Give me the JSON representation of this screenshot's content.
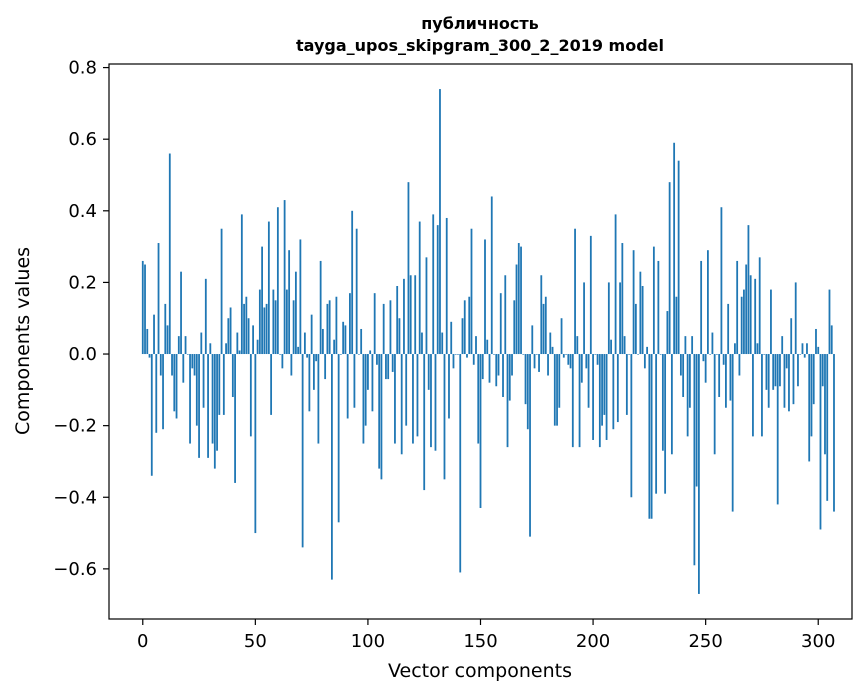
{
  "chart_data": {
    "type": "bar",
    "title_lines": [
      "публичность",
      "tayga_upos_skipgram_300_2_2019 model"
    ],
    "xlabel": "Vector components",
    "ylabel": "Components values",
    "xlim": [
      -15,
      315
    ],
    "ylim": [
      -0.74,
      0.81
    ],
    "xticks": [
      0,
      50,
      100,
      150,
      200,
      250,
      300
    ],
    "xtick_labels": [
      "0",
      "50",
      "100",
      "150",
      "200",
      "250",
      "300"
    ],
    "yticks": [
      -0.6,
      -0.4,
      -0.2,
      0.0,
      0.2,
      0.4,
      0.6,
      0.8
    ],
    "ytick_labels": [
      "−0.6",
      "−0.4",
      "−0.2",
      "0.0",
      "0.2",
      "0.4",
      "0.6",
      "0.8"
    ],
    "grid": false,
    "legend": "none",
    "bar_color": "#1f77b4",
    "series": [
      {
        "values": [
          0.26,
          0.25,
          0.07,
          -0.01,
          -0.34,
          0.11,
          -0.22,
          0.31,
          -0.06,
          -0.21,
          0.14,
          0.08,
          0.56,
          -0.06,
          -0.16,
          -0.18,
          0.05,
          0.23,
          -0.08,
          0.05,
          0.0,
          -0.25,
          -0.04,
          -0.06,
          -0.2,
          -0.29,
          0.06,
          -0.15,
          0.21,
          -0.29,
          0.03,
          -0.25,
          -0.32,
          -0.27,
          -0.17,
          0.35,
          -0.17,
          0.03,
          0.1,
          0.13,
          -0.12,
          -0.36,
          0.06,
          0.01,
          0.39,
          0.14,
          0.16,
          0.1,
          -0.23,
          0.08,
          -0.5,
          0.04,
          0.18,
          0.3,
          0.13,
          0.14,
          0.37,
          -0.17,
          0.18,
          0.15,
          0.41,
          0.0,
          -0.04,
          0.43,
          0.18,
          0.29,
          -0.06,
          0.15,
          0.23,
          0.02,
          0.32,
          -0.54,
          0.06,
          -0.01,
          -0.16,
          0.11,
          -0.1,
          -0.02,
          -0.25,
          0.26,
          0.07,
          -0.07,
          0.14,
          0.15,
          -0.63,
          0.04,
          0.16,
          -0.47,
          0.0,
          0.09,
          0.08,
          -0.18,
          0.17,
          0.4,
          -0.15,
          0.35,
          0.0,
          0.07,
          -0.25,
          -0.2,
          -0.1,
          0.01,
          -0.16,
          0.17,
          -0.03,
          -0.32,
          -0.35,
          0.14,
          -0.07,
          -0.07,
          0.15,
          -0.05,
          -0.25,
          0.19,
          0.1,
          -0.28,
          0.21,
          -0.2,
          0.48,
          0.22,
          -0.25,
          0.22,
          -0.23,
          0.37,
          0.06,
          -0.38,
          0.27,
          -0.1,
          -0.26,
          0.39,
          -0.27,
          0.36,
          0.74,
          0.06,
          -0.35,
          0.38,
          -0.18,
          0.09,
          -0.04,
          0.0,
          0.0,
          -0.61,
          0.1,
          0.15,
          -0.01,
          0.16,
          0.35,
          -0.03,
          0.05,
          -0.25,
          -0.43,
          -0.07,
          0.32,
          0.04,
          -0.08,
          0.44,
          0.0,
          -0.09,
          -0.06,
          0.17,
          -0.12,
          0.22,
          -0.26,
          -0.13,
          -0.06,
          0.15,
          0.25,
          0.31,
          0.3,
          0.0,
          -0.14,
          -0.21,
          -0.51,
          0.08,
          -0.04,
          0.0,
          -0.05,
          0.22,
          0.14,
          0.16,
          -0.06,
          0.06,
          0.02,
          -0.2,
          -0.2,
          -0.15,
          0.1,
          -0.01,
          0.0,
          -0.03,
          -0.04,
          -0.26,
          0.35,
          0.05,
          -0.26,
          -0.08,
          0.2,
          -0.04,
          -0.15,
          0.33,
          -0.24,
          0.0,
          -0.03,
          -0.26,
          -0.2,
          -0.17,
          -0.24,
          0.2,
          0.04,
          -0.21,
          0.39,
          -0.19,
          0.2,
          0.31,
          0.05,
          -0.17,
          0.0,
          -0.4,
          0.29,
          0.14,
          0.0,
          0.23,
          0.19,
          -0.04,
          0.02,
          -0.46,
          -0.46,
          0.3,
          -0.39,
          0.26,
          0.0,
          -0.27,
          -0.39,
          0.12,
          0.48,
          -0.28,
          0.59,
          0.16,
          0.54,
          -0.06,
          -0.12,
          0.05,
          -0.23,
          -0.15,
          0.05,
          -0.59,
          -0.37,
          -0.67,
          0.26,
          -0.02,
          -0.08,
          0.29,
          0.0,
          0.06,
          -0.28,
          0.0,
          -0.12,
          0.41,
          -0.03,
          -0.15,
          0.14,
          -0.13,
          -0.44,
          0.03,
          0.26,
          -0.06,
          0.16,
          0.18,
          0.25,
          0.36,
          0.22,
          -0.23,
          0.21,
          0.03,
          0.27,
          -0.23,
          0.0,
          -0.1,
          -0.15,
          0.18,
          -0.1,
          -0.09,
          -0.42,
          -0.09,
          0.05,
          -0.15,
          -0.04,
          -0.16,
          0.1,
          -0.14,
          0.2,
          -0.09,
          0.0,
          0.03,
          -0.01,
          0.03,
          -0.3,
          -0.23,
          -0.14,
          0.07,
          0.02,
          -0.49,
          -0.09,
          -0.28,
          -0.41,
          0.18,
          0.08,
          -0.44
        ]
      }
    ]
  }
}
